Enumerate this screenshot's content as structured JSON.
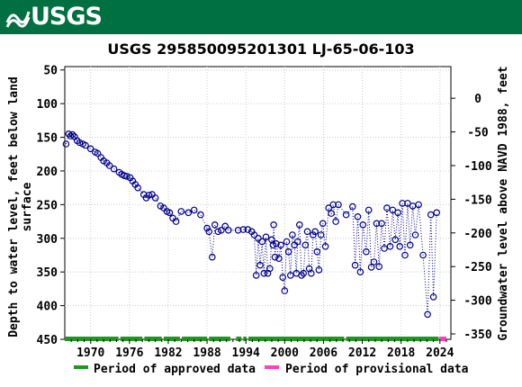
{
  "header": {
    "logo_text": "USGS",
    "color": "#006f41"
  },
  "chart_data": {
    "type": "scatter",
    "title": "USGS 295850095201301 LJ-65-06-103",
    "ylabel_left_line1": "Depth to water level, feet below land",
    "ylabel_left_line2": "surface",
    "ylabel_right": "Groundwater level above NAVD 1988, feet",
    "x_ticks": [
      "1970",
      "1976",
      "1982",
      "1988",
      "1994",
      "2000",
      "2006",
      "2012",
      "2018",
      "2024"
    ],
    "x_tick_values": [
      1970,
      1976,
      1982,
      1988,
      1994,
      2000,
      2006,
      2012,
      2018,
      2024
    ],
    "xlim": [
      1966.0,
      2025.7
    ],
    "ylim_left": [
      450,
      45
    ],
    "y_ticks_left": [
      50,
      100,
      150,
      200,
      250,
      300,
      350,
      400,
      450
    ],
    "ylim_right": [
      -358,
      47
    ],
    "y_ticks_right": [
      0,
      -50,
      -100,
      -150,
      -200,
      -250,
      -300,
      -350
    ],
    "y_ticks_right_labels": [
      "0",
      "-50",
      "-100",
      "-150",
      "-200",
      "-250",
      "-300",
      "-350"
    ],
    "series": [
      {
        "marker": "open-circle",
        "color": "#00008b",
        "line_style": "dotted",
        "points": [
          [
            1966.2,
            160
          ],
          [
            1966.6,
            145
          ],
          [
            1966.9,
            148
          ],
          [
            1967.2,
            146
          ],
          [
            1967.5,
            149
          ],
          [
            1967.9,
            155
          ],
          [
            1968.3,
            158
          ],
          [
            1968.8,
            160
          ],
          [
            1969.2,
            162
          ],
          [
            1970.0,
            167
          ],
          [
            1970.7,
            172
          ],
          [
            1971.1,
            174
          ],
          [
            1971.6,
            180
          ],
          [
            1972.0,
            185
          ],
          [
            1972.5,
            188
          ],
          [
            1972.9,
            192
          ],
          [
            1973.6,
            197
          ],
          [
            1974.4,
            202
          ],
          [
            1974.8,
            205
          ],
          [
            1975.2,
            207
          ],
          [
            1975.6,
            208
          ],
          [
            1976.1,
            210
          ],
          [
            1976.5,
            215
          ],
          [
            1976.9,
            220
          ],
          [
            1977.3,
            225
          ],
          [
            1978.2,
            235
          ],
          [
            1978.6,
            240
          ],
          [
            1979.0,
            236
          ],
          [
            1979.5,
            235
          ],
          [
            1980.0,
            240
          ],
          [
            1980.8,
            252
          ],
          [
            1981.3,
            255
          ],
          [
            1981.8,
            260
          ],
          [
            1982.2,
            262
          ],
          [
            1982.7,
            270
          ],
          [
            1983.2,
            275
          ],
          [
            1984.0,
            260
          ],
          [
            1985.1,
            262
          ],
          [
            1986.0,
            258
          ],
          [
            1987.0,
            265
          ],
          [
            1988.0,
            285
          ],
          [
            1988.3,
            290
          ],
          [
            1988.8,
            328
          ],
          [
            1989.2,
            280
          ],
          [
            1989.7,
            290
          ],
          [
            1990.2,
            288
          ],
          [
            1990.8,
            282
          ],
          [
            1991.3,
            288
          ],
          [
            1992.8,
            288
          ],
          [
            1993.6,
            287
          ],
          [
            1994.3,
            287
          ],
          [
            1994.9,
            290
          ],
          [
            1995.3,
            295
          ],
          [
            1995.6,
            355
          ],
          [
            1995.9,
            300
          ],
          [
            1996.2,
            340
          ],
          [
            1996.5,
            305
          ],
          [
            1996.8,
            352
          ],
          [
            1997.1,
            298
          ],
          [
            1997.4,
            352
          ],
          [
            1997.7,
            345
          ],
          [
            1998.0,
            302
          ],
          [
            1998.2,
            310
          ],
          [
            1998.5,
            328
          ],
          [
            1998.7,
            308
          ],
          [
            1998.3,
            280
          ],
          [
            1999.1,
            330
          ],
          [
            1999.4,
            310
          ],
          [
            1999.7,
            358
          ],
          [
            2000.0,
            378
          ],
          [
            2000.3,
            305
          ],
          [
            2000.6,
            320
          ],
          [
            2000.9,
            355
          ],
          [
            2001.2,
            295
          ],
          [
            2001.5,
            310
          ],
          [
            2001.8,
            352
          ],
          [
            2002.0,
            305
          ],
          [
            2002.3,
            280
          ],
          [
            2002.6,
            355
          ],
          [
            2002.9,
            352
          ],
          [
            2003.2,
            310
          ],
          [
            2003.5,
            290
          ],
          [
            2003.8,
            345
          ],
          [
            2004.1,
            352
          ],
          [
            2004.4,
            295
          ],
          [
            2004.7,
            290
          ],
          [
            2005.0,
            320
          ],
          [
            2005.3,
            347
          ],
          [
            2005.6,
            295
          ],
          [
            2005.9,
            278
          ],
          [
            2006.3,
            312
          ],
          [
            2006.8,
            255
          ],
          [
            2007.2,
            263
          ],
          [
            2007.5,
            250
          ],
          [
            2007.9,
            275
          ],
          [
            2008.3,
            250
          ],
          [
            2009.5,
            265
          ],
          [
            2010.5,
            253
          ],
          [
            2010.9,
            340
          ],
          [
            2011.3,
            268
          ],
          [
            2011.7,
            350
          ],
          [
            2012.1,
            280
          ],
          [
            2012.6,
            320
          ],
          [
            2013.0,
            258
          ],
          [
            2013.4,
            343
          ],
          [
            2013.8,
            335
          ],
          [
            2014.2,
            278
          ],
          [
            2014.6,
            342
          ],
          [
            2015.0,
            278
          ],
          [
            2015.4,
            315
          ],
          [
            2015.8,
            255
          ],
          [
            2016.3,
            312
          ],
          [
            2016.7,
            258
          ],
          [
            2017.1,
            302
          ],
          [
            2017.5,
            262
          ],
          [
            2017.8,
            312
          ],
          [
            2018.2,
            248
          ],
          [
            2018.6,
            325
          ],
          [
            2019.0,
            248
          ],
          [
            2019.4,
            310
          ],
          [
            2019.8,
            252
          ],
          [
            2020.2,
            295
          ],
          [
            2020.7,
            250
          ],
          [
            2021.4,
            325
          ],
          [
            2022.1,
            413
          ],
          [
            2022.6,
            265
          ],
          [
            2023.0,
            387
          ],
          [
            2023.5,
            262
          ]
        ]
      }
    ],
    "periods": {
      "approved": {
        "color": "#1b9a1b",
        "ranges": [
          [
            1966.0,
            1974.3
          ],
          [
            1974.6,
            1978.0
          ],
          [
            1978.3,
            1981.0
          ],
          [
            1981.3,
            1983.8
          ],
          [
            1984.1,
            1988.0
          ],
          [
            1988.3,
            1991.6
          ],
          [
            1992.5,
            1993.3
          ],
          [
            1993.6,
            1994.1
          ],
          [
            1994.4,
            2009.2
          ],
          [
            2009.5,
            2023.8
          ]
        ]
      },
      "provisional": {
        "color": "#ff40c0",
        "ranges": [
          [
            2023.9,
            2025.0
          ]
        ]
      }
    },
    "legend": {
      "position": "bottom",
      "approved_label": "Period of approved data",
      "provisional_label": "Period of provisional data"
    },
    "grid": true
  }
}
